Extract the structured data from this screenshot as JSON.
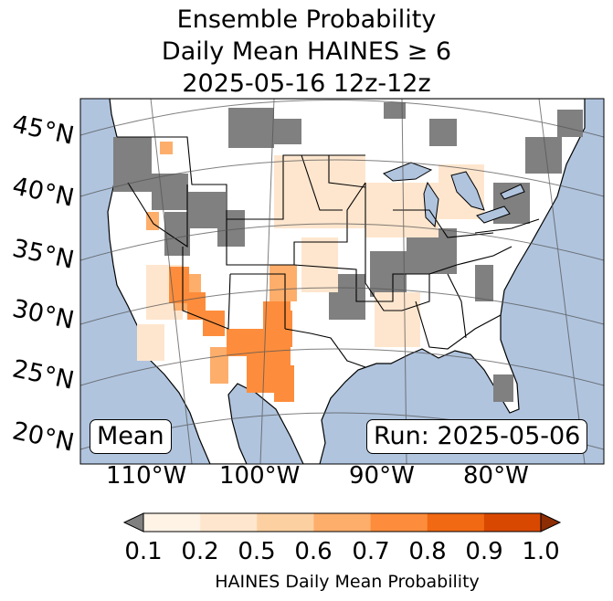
{
  "title": {
    "line1": "Ensemble Probability",
    "line2": "Daily Mean HAINES ≥ 6",
    "line3": "2025-05-16 12z-12z"
  },
  "map": {
    "lat_labels": [
      "45°N",
      "40°N",
      "35°N",
      "30°N",
      "25°N",
      "20°N"
    ],
    "lon_labels": [
      "110°W",
      "100°W",
      "90°W",
      "80°W"
    ],
    "stat_box": "Mean",
    "run_box": "Run: 2025-05-06",
    "colors": {
      "ocean": "#b0c4de",
      "land": "#ffffff",
      "below_threshold": "#808080",
      "graticule": "#555555",
      "borders": "#000000"
    }
  },
  "colorbar": {
    "ticks": [
      "0.1",
      "0.2",
      "0.5",
      "0.6",
      "0.7",
      "0.8",
      "0.9",
      "1.0"
    ],
    "colors": [
      "#fff3e6",
      "#fee6ce",
      "#fdd0a2",
      "#fdae6b",
      "#fd8d3c",
      "#f16913",
      "#d94801"
    ],
    "under_color": "#808080",
    "over_color": "#8c2d04",
    "label": "HAINES Daily Mean Probability"
  }
}
